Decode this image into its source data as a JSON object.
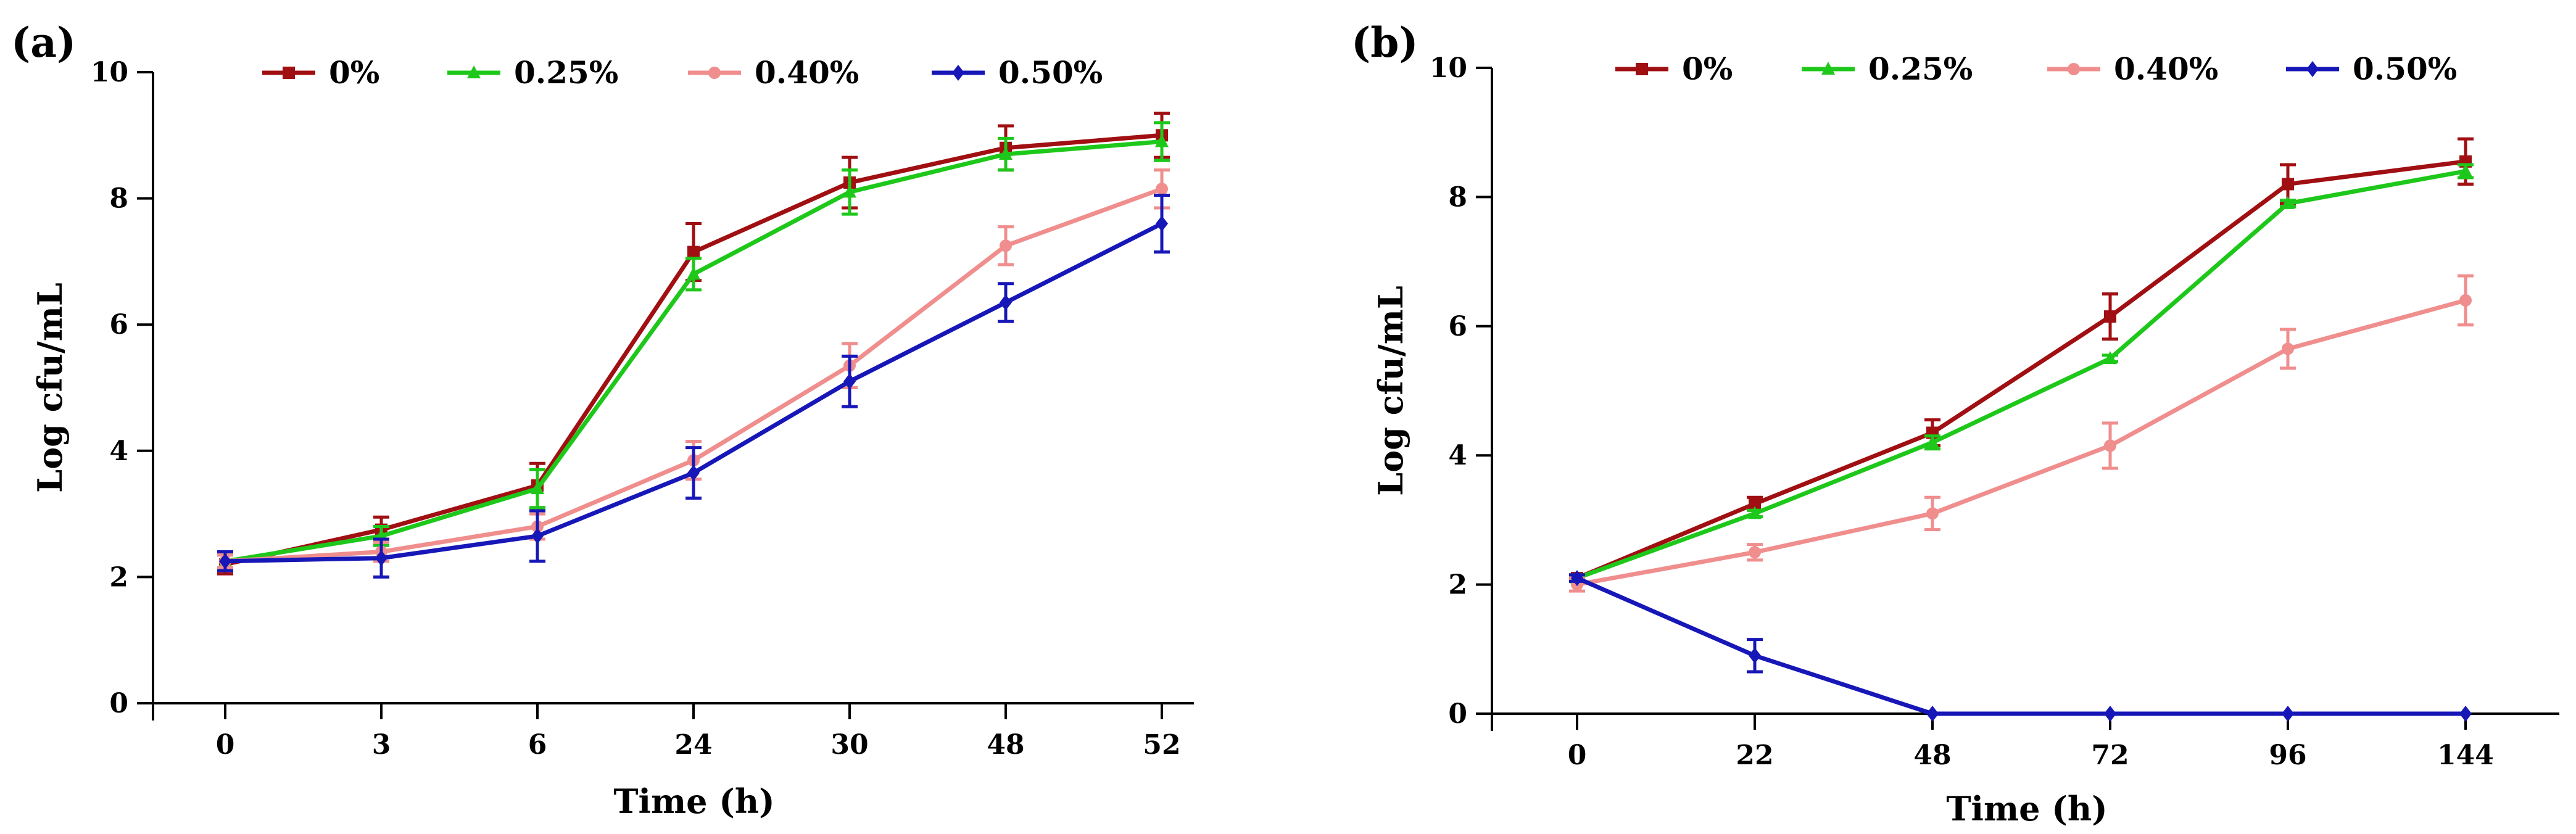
{
  "chart_data": [
    {
      "panel_label": "(a)",
      "type": "line",
      "categories": [
        "0",
        "3",
        "6",
        "24",
        "30",
        "48",
        "52"
      ],
      "xlabel": "Time (h)",
      "ylabel": "Log cfu/mL",
      "ylim": [
        0,
        10
      ],
      "yticks": [
        "0",
        "2",
        "4",
        "6",
        "8",
        "10"
      ],
      "legend_position": "top",
      "series": [
        {
          "name": "0%",
          "color": "#a00f12",
          "marker": "square",
          "values": [
            2.2,
            2.75,
            3.45,
            7.15,
            8.25,
            8.8,
            9.0
          ],
          "errors": [
            0.15,
            0.2,
            0.35,
            0.45,
            0.4,
            0.35,
            0.35
          ]
        },
        {
          "name": "0.25%",
          "color": "#1ec81a",
          "marker": "triangle",
          "values": [
            2.25,
            2.65,
            3.4,
            6.8,
            8.1,
            8.7,
            8.9
          ],
          "errors": [
            0.1,
            0.15,
            0.3,
            0.25,
            0.35,
            0.25,
            0.3
          ]
        },
        {
          "name": "0.40%",
          "color": "#f08e8e",
          "marker": "circle",
          "values": [
            2.25,
            2.4,
            2.8,
            3.85,
            5.35,
            7.25,
            8.15
          ],
          "errors": [
            0.1,
            0.15,
            0.2,
            0.3,
            0.35,
            0.3,
            0.3
          ]
        },
        {
          "name": "0.50%",
          "color": "#1717b8",
          "marker": "diamond",
          "values": [
            2.25,
            2.3,
            2.65,
            3.65,
            5.1,
            6.35,
            7.6
          ],
          "errors": [
            0.15,
            0.3,
            0.4,
            0.4,
            0.4,
            0.3,
            0.45
          ]
        }
      ]
    },
    {
      "panel_label": "(b)",
      "type": "line",
      "categories": [
        "0",
        "22",
        "48",
        "72",
        "96",
        "144"
      ],
      "xlabel": "Time (h)",
      "ylabel": "Log cfu/mL",
      "ylim": [
        0,
        10
      ],
      "yticks": [
        "0",
        "2",
        "4",
        "6",
        "8",
        "10"
      ],
      "legend_position": "top",
      "series": [
        {
          "name": "0%",
          "color": "#a00f12",
          "marker": "square",
          "values": [
            2.1,
            3.25,
            4.35,
            6.15,
            8.2,
            8.55
          ],
          "errors": [
            0.05,
            0.1,
            0.2,
            0.35,
            0.3,
            0.35
          ]
        },
        {
          "name": "0.25%",
          "color": "#1ec81a",
          "marker": "triangle",
          "values": [
            2.1,
            3.1,
            4.2,
            5.5,
            7.9,
            8.4
          ],
          "errors": [
            0.05,
            0.05,
            0.1,
            0.05,
            0.05,
            0.1
          ]
        },
        {
          "name": "0.40%",
          "color": "#f08e8e",
          "marker": "circle",
          "values": [
            2.0,
            2.5,
            3.1,
            4.15,
            5.65,
            6.4
          ],
          "errors": [
            0.1,
            0.12,
            0.25,
            0.35,
            0.3,
            0.38
          ]
        },
        {
          "name": "0.50%",
          "color": "#1717b8",
          "marker": "diamond",
          "values": [
            2.1,
            0.9,
            0.0,
            0.0,
            0.0,
            0.0
          ],
          "errors": [
            0.05,
            0.25,
            0.0,
            0.0,
            0.0,
            0.0
          ]
        }
      ]
    }
  ]
}
